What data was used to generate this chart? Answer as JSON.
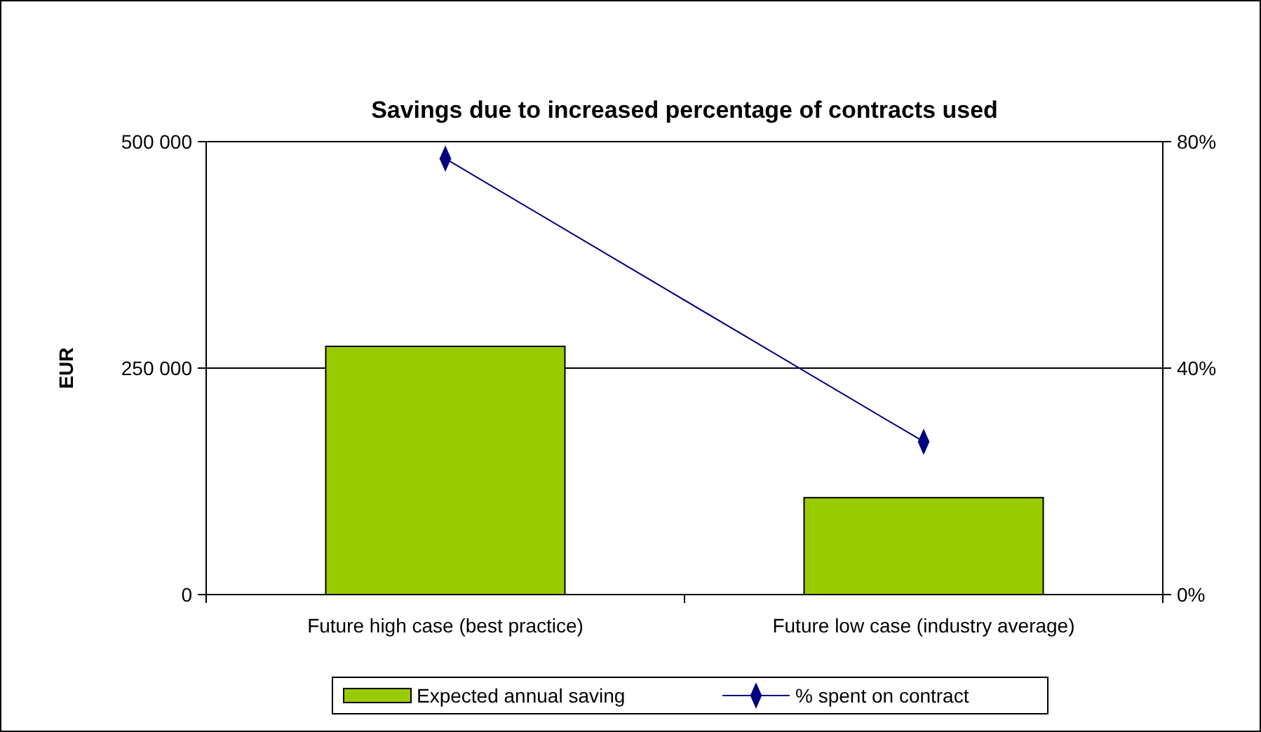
{
  "chart_data": {
    "type": "bar",
    "title": "Savings due to increased percentage of contracts used",
    "ylabel": "EUR",
    "categories": [
      "Future high case (best practice)",
      "Future low case (industry average)"
    ],
    "series": [
      {
        "name": "Expected annual saving",
        "color": "#99cc00",
        "values": [
          274000,
          107000
        ]
      },
      {
        "name": "% spent on contract",
        "type": "line",
        "axis": "y2",
        "color": "#000080",
        "values": [
          77,
          27
        ]
      }
    ],
    "ylim": [
      0,
      500000
    ],
    "yticks": [
      {
        "value": 0,
        "label": "0"
      },
      {
        "value": 250000,
        "label": "250 000"
      },
      {
        "value": 500000,
        "label": "500 000"
      }
    ],
    "y2lim": [
      0,
      80
    ],
    "y2ticks": [
      {
        "value": 0,
        "label": "0%"
      },
      {
        "value": 40,
        "label": "40%"
      },
      {
        "value": 80,
        "label": "80%"
      }
    ],
    "grid": "y",
    "legend": "bottom",
    "marker": "diamond"
  }
}
